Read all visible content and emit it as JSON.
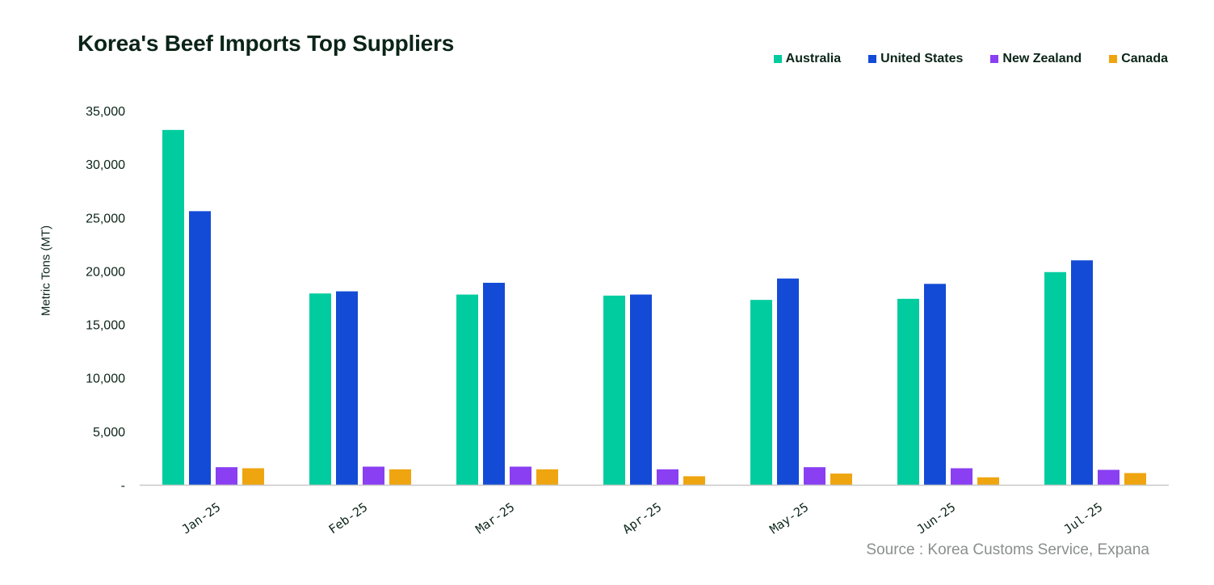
{
  "source": "Source : Korea Customs Service, Expana",
  "chart_data": {
    "type": "bar",
    "title": "Korea's Beef Imports Top Suppliers",
    "ylabel": "Metric Tons (MT)",
    "xlabel": "",
    "categories": [
      "Jan-25",
      "Feb-25",
      "Mar-25",
      "Apr-25",
      "May-25",
      "Jun-25",
      "Jul-25"
    ],
    "ylim": [
      0,
      35000
    ],
    "yticks": [
      0,
      5000,
      10000,
      15000,
      20000,
      25000,
      30000,
      35000
    ],
    "ytick_labels": [
      "-",
      "5,000",
      "10,000",
      "15,000",
      "20,000",
      "25,000",
      "30,000",
      "35,000"
    ],
    "grid": false,
    "legend_position": "top-right",
    "series": [
      {
        "name": "Australia",
        "color": "#00cc9f",
        "values": [
          33200,
          17900,
          17800,
          17700,
          17300,
          17400,
          19900
        ]
      },
      {
        "name": "United States",
        "color": "#134bd6",
        "values": [
          25600,
          18100,
          18900,
          17800,
          19300,
          18800,
          21000
        ]
      },
      {
        "name": "New Zealand",
        "color": "#8a3ff2",
        "values": [
          1650,
          1700,
          1700,
          1450,
          1650,
          1550,
          1400
        ]
      },
      {
        "name": "Canada",
        "color": "#efa50f",
        "values": [
          1550,
          1450,
          1450,
          800,
          1050,
          700,
          1100
        ]
      }
    ]
  }
}
